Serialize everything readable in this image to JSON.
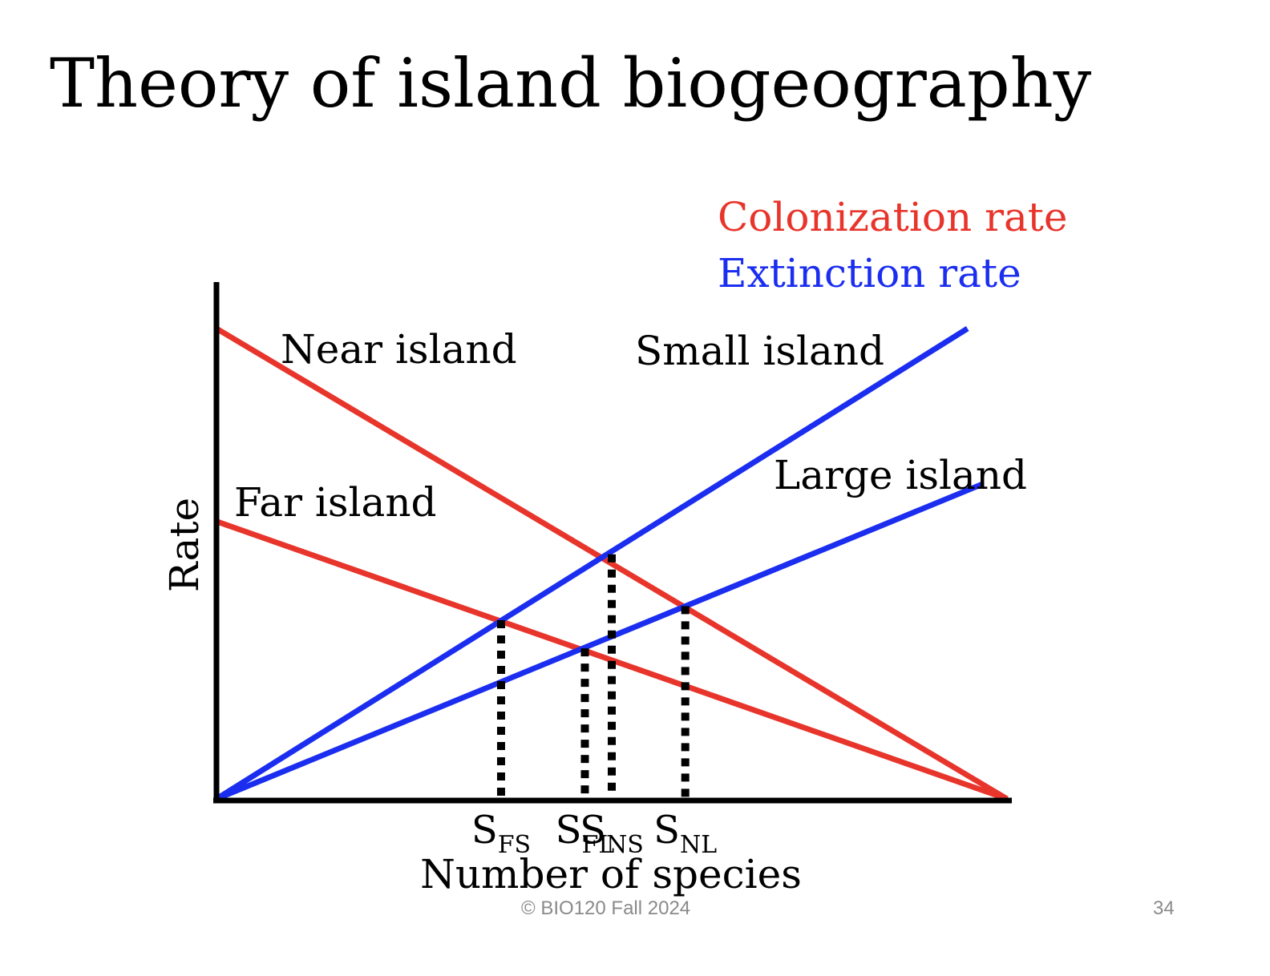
{
  "slide": {
    "title": "Theory of island biogeography",
    "footer_copyright": "© BIO120 Fall 2024",
    "page_number": "34"
  },
  "chart_data": {
    "type": "line",
    "xlabel": "Number of species",
    "ylabel": "Rate",
    "xlim": [
      0,
      1
    ],
    "ylim": [
      0,
      1
    ],
    "legend": [
      {
        "label": "Colonization rate",
        "color": "#e8352c"
      },
      {
        "label": "Extinction rate",
        "color": "#1b2ef0"
      }
    ],
    "legend_placement": "top-right",
    "series": [
      {
        "name": "Near island",
        "kind": "colonization",
        "color": "#e8352c",
        "x": [
          0,
          1
        ],
        "y": [
          1.0,
          0
        ]
      },
      {
        "name": "Far island",
        "kind": "colonization",
        "color": "#e8352c",
        "x": [
          0,
          1
        ],
        "y": [
          0.59,
          0
        ]
      },
      {
        "name": "Small island",
        "kind": "extinction",
        "color": "#1b2ef0",
        "x": [
          0,
          0.95
        ],
        "y": [
          0,
          1.0
        ]
      },
      {
        "name": "Large island",
        "kind": "extinction",
        "color": "#1b2ef0",
        "x": [
          0,
          0.97
        ],
        "y": [
          0,
          0.67
        ]
      }
    ],
    "equilibria": [
      {
        "main": "S",
        "sub": "FS",
        "x": 0.36,
        "y": 0.38
      },
      {
        "main": "S",
        "sub": "FL",
        "x": 0.466,
        "y": 0.32
      },
      {
        "main": "S",
        "sub": "NS",
        "x": 0.5,
        "y": 0.52
      },
      {
        "main": "S",
        "sub": "NL",
        "x": 0.593,
        "y": 0.41
      }
    ],
    "grid": false
  }
}
